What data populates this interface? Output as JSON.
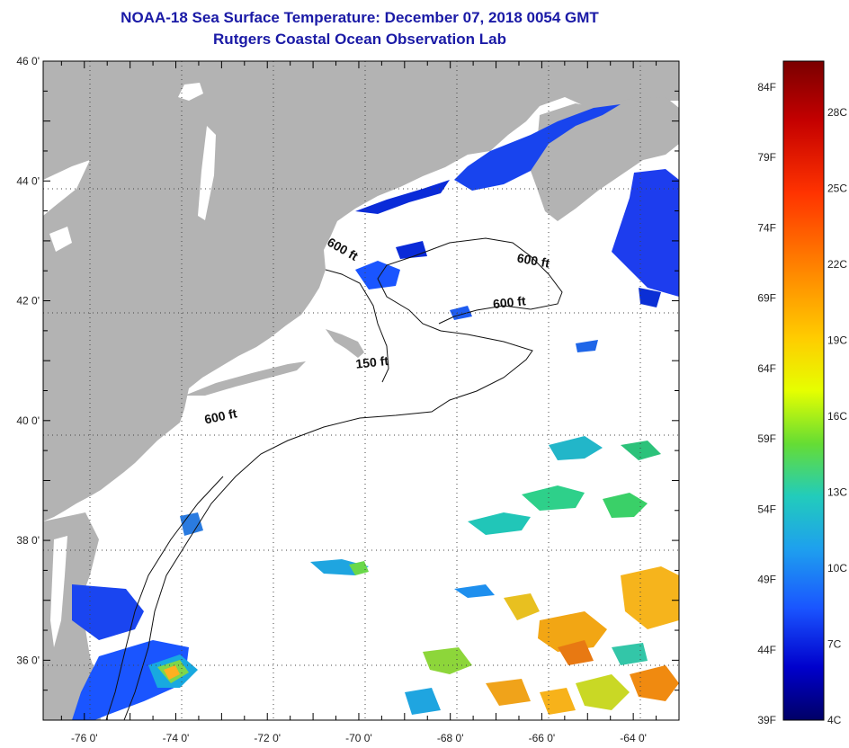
{
  "header": {
    "title": "NOAA-18 Sea Surface Temperature:  December 07, 2018 0054 GMT",
    "subtitle": "Rutgers Coastal Ocean Observation Lab"
  },
  "map": {
    "lon_range": [
      -76.9,
      -63.0
    ],
    "lat_range": [
      35.0,
      46.0
    ],
    "lat_ticks": [
      {
        "value": 46,
        "label": "46 0'"
      },
      {
        "value": 44,
        "label": "44 0'"
      },
      {
        "value": 42,
        "label": "42 0'"
      },
      {
        "value": 40,
        "label": "40 0'"
      },
      {
        "value": 38,
        "label": "38 0'"
      },
      {
        "value": 36,
        "label": "36 0'"
      }
    ],
    "lon_ticks": [
      {
        "value": -76,
        "label": "-76 0'"
      },
      {
        "value": -74,
        "label": "-74 0'"
      },
      {
        "value": -72,
        "label": "-72 0'"
      },
      {
        "value": -70,
        "label": "-70 0'"
      },
      {
        "value": -68,
        "label": "-68 0'"
      },
      {
        "value": -66,
        "label": "-66 0'"
      },
      {
        "value": -64,
        "label": "-64 0'"
      }
    ],
    "isobath_labels": [
      {
        "text": "600 ft",
        "lon": -73.0,
        "lat": 40.0
      },
      {
        "text": "150 ft",
        "lon": -69.7,
        "lat": 40.9
      },
      {
        "text": "600 ft",
        "lon": -66.7,
        "lat": 41.9
      },
      {
        "text": "600 ft",
        "lon": -66.2,
        "lat": 42.6
      },
      {
        "text": "600 ft",
        "lon": -70.4,
        "lat": 42.8
      }
    ],
    "land_color": "#b3b3b3",
    "ocean_color": "#ffffff"
  },
  "colorbar": {
    "f_labels": [
      "84F",
      "79F",
      "74F",
      "69F",
      "64F",
      "59F",
      "54F",
      "49F",
      "44F",
      "39F"
    ],
    "c_labels": [
      "28C",
      "25C",
      "22C",
      "19C",
      "16C",
      "13C",
      "10C",
      "7C",
      "4C"
    ],
    "stops": [
      "#7a0000",
      "#c40000",
      "#ff3300",
      "#ff8800",
      "#ffcc00",
      "#e6ff00",
      "#66dd33",
      "#22ccbb",
      "#1ea0ee",
      "#1a55ff",
      "#0000cc",
      "#000066"
    ]
  }
}
